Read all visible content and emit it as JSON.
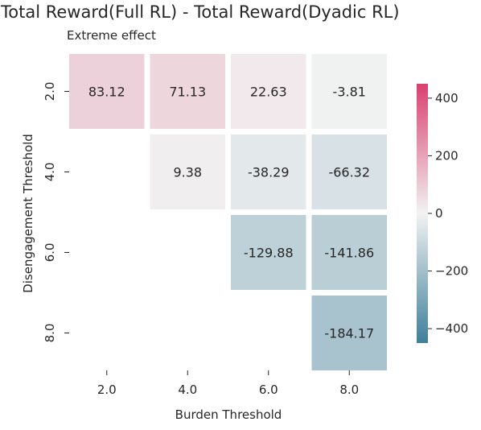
{
  "chart_data": {
    "type": "heatmap",
    "title": "Total Reward(Full RL) - Total Reward(Dyadic RL)",
    "subtitle": "Extreme effect",
    "xlabel": "Burden Threshold",
    "ylabel": "Disengagement Threshold",
    "x_categories": [
      "2.0",
      "4.0",
      "6.0",
      "8.0"
    ],
    "y_categories": [
      "2.0",
      "4.0",
      "6.0",
      "8.0"
    ],
    "values": [
      [
        83.12,
        71.13,
        22.63,
        -3.81
      ],
      [
        null,
        9.38,
        -38.29,
        -66.32
      ],
      [
        null,
        null,
        -129.88,
        -141.86
      ],
      [
        null,
        null,
        null,
        -184.17
      ]
    ],
    "colorbar": {
      "range": [
        -450,
        450
      ],
      "ticks": [
        400,
        200,
        0,
        -200,
        -400
      ],
      "tick_labels": [
        "400",
        "200",
        "0",
        "−200",
        "−400"
      ],
      "colors": {
        "negative": "#3f7f99",
        "center": "#f2f2f2",
        "positive": "#d9406e"
      }
    },
    "grid": false
  }
}
